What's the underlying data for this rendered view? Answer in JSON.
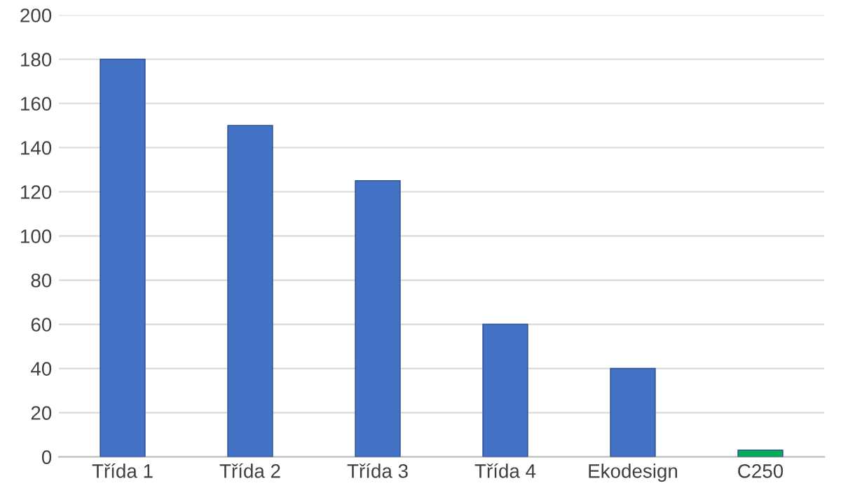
{
  "chart_data": {
    "type": "bar",
    "categories": [
      "Třída 1",
      "Třída 2",
      "Třída 3",
      "Třída 4",
      "Ekodesign",
      "C250"
    ],
    "values": [
      180,
      150,
      125,
      60,
      40,
      3
    ],
    "colors": [
      "#4472c4",
      "#4472c4",
      "#4472c4",
      "#4472c4",
      "#4472c4",
      "#00b050"
    ],
    "ylim": [
      0,
      200
    ],
    "yticks": [
      0,
      20,
      40,
      60,
      80,
      100,
      120,
      140,
      160,
      180,
      200
    ],
    "grid": "y",
    "legend": false
  }
}
